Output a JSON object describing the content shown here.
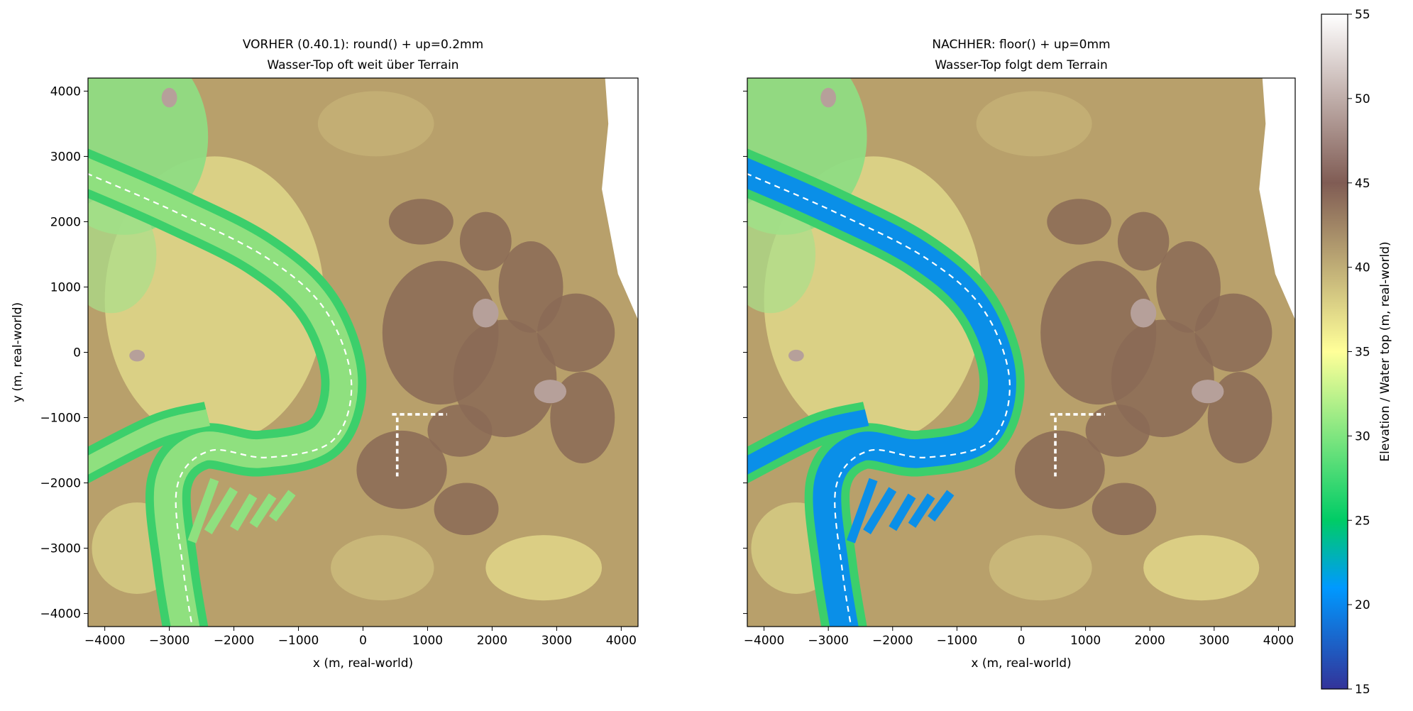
{
  "chart_data": [
    {
      "type": "heatmap",
      "title": "VORHER (0.40.1): round() + up=0.2mm",
      "subtitle": "Wasser-Top oft weit über Terrain",
      "xlabel": "x (m, real-world)",
      "ylabel": "y (m, real-world)",
      "xlim": [
        -4260,
        4260
      ],
      "ylim": [
        -4200,
        4200
      ],
      "xticks": [
        {
          "value": -4000,
          "label": "−4000"
        },
        {
          "value": -3000,
          "label": "−3000"
        },
        {
          "value": -2000,
          "label": "−2000"
        },
        {
          "value": -1000,
          "label": "−1000"
        },
        0,
        1000,
        2000,
        3000,
        4000
      ],
      "yticks": [
        {
          "value": -4000,
          "label": "−4000"
        },
        {
          "value": -3000,
          "label": "−3000"
        },
        {
          "value": -2000,
          "label": "−2000"
        },
        {
          "value": -1000,
          "label": "−1000"
        },
        0,
        1000,
        2000,
        3000,
        4000
      ]
    },
    {
      "type": "heatmap",
      "title": "NACHHER: floor() + up=0mm",
      "subtitle": "Wasser-Top folgt dem Terrain",
      "xlabel": "x (m, real-world)",
      "xlim": [
        -4260,
        4260
      ],
      "ylim": [
        -4200,
        4200
      ],
      "xticks": [
        {
          "value": -4000,
          "label": "−4000"
        },
        {
          "value": -3000,
          "label": "−3000"
        },
        {
          "value": -2000,
          "label": "−2000"
        },
        {
          "value": -1000,
          "label": "−1000"
        },
        0,
        1000,
        2000,
        3000,
        4000
      ],
      "yticks": [
        -4000,
        -3000,
        -2000,
        -1000,
        0,
        1000,
        2000,
        3000,
        4000
      ]
    },
    {
      "type": "colorbar",
      "label": "Elevation / Water top (m, real-world)",
      "colormap": "terrain",
      "lim": [
        15,
        55
      ],
      "ticks": [
        15,
        20,
        25,
        30,
        35,
        40,
        45,
        50,
        55
      ]
    }
  ]
}
